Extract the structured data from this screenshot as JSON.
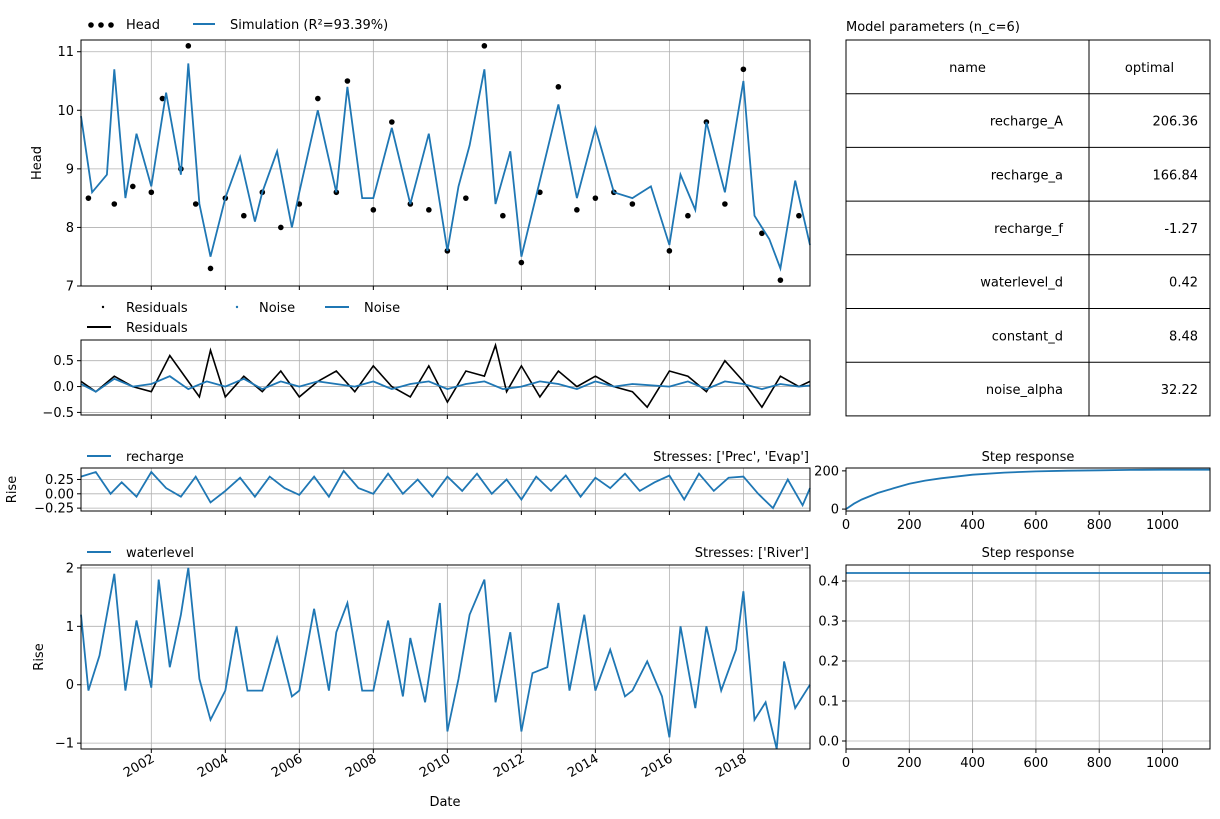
{
  "colors": {
    "head": "#000000",
    "simulation": "#1f77b4",
    "residuals": "#000000",
    "noise": "#1f77b4",
    "grid": "#b0b0b0"
  },
  "chart_data": [
    {
      "type": "line",
      "id": "head",
      "ylabel": "Head",
      "xlim": [
        2000.1,
        2019.8
      ],
      "ylim": [
        7,
        11.2
      ],
      "yticks": [
        7,
        8,
        9,
        10,
        11
      ],
      "grid": true,
      "legend": {
        "placement": "top-left",
        "entries": [
          "Head",
          "Simulation (R²=93.39%)"
        ]
      },
      "series": [
        {
          "name": "Head",
          "style": "points",
          "x": [
            2000.3,
            2001.0,
            2001.5,
            2002.0,
            2002.3,
            2002.8,
            2003.0,
            2003.2,
            2003.6,
            2004.0,
            2004.5,
            2005.0,
            2005.5,
            2006.0,
            2006.5,
            2007.0,
            2007.3,
            2008.0,
            2008.5,
            2009.0,
            2009.5,
            2010.0,
            2010.5,
            2011.0,
            2011.5,
            2012.0,
            2012.5,
            2013.0,
            2013.5,
            2014.0,
            2014.5,
            2015.0,
            2016.0,
            2016.5,
            2017.0,
            2017.5,
            2018.0,
            2018.5,
            2019.0,
            2019.5
          ],
          "values": [
            8.5,
            8.4,
            8.7,
            8.6,
            10.2,
            9.0,
            11.1,
            8.4,
            7.3,
            8.5,
            8.2,
            8.6,
            8.0,
            8.4,
            10.2,
            8.6,
            10.5,
            8.3,
            9.8,
            8.4,
            8.3,
            7.6,
            8.5,
            11.1,
            8.2,
            7.4,
            8.6,
            10.4,
            8.3,
            8.5,
            8.6,
            8.4,
            7.6,
            8.2,
            9.8,
            8.4,
            10.7,
            7.9,
            7.1,
            8.2
          ]
        },
        {
          "name": "Simulation (R²=93.39%)",
          "style": "line",
          "x": [
            2000.1,
            2000.4,
            2000.8,
            2001.0,
            2001.3,
            2001.6,
            2002.0,
            2002.4,
            2002.8,
            2003.0,
            2003.3,
            2003.6,
            2004.0,
            2004.4,
            2004.8,
            2005.0,
            2005.4,
            2005.8,
            2006.0,
            2006.5,
            2007.0,
            2007.3,
            2007.7,
            2008.0,
            2008.5,
            2009.0,
            2009.5,
            2010.0,
            2010.3,
            2010.6,
            2011.0,
            2011.3,
            2011.7,
            2012.0,
            2012.5,
            2013.0,
            2013.5,
            2014.0,
            2014.5,
            2015.0,
            2015.5,
            2016.0,
            2016.3,
            2016.7,
            2017.0,
            2017.5,
            2018.0,
            2018.3,
            2018.7,
            2019.0,
            2019.4,
            2019.8
          ],
          "values": [
            9.9,
            8.6,
            8.9,
            10.7,
            8.5,
            9.6,
            8.7,
            10.3,
            8.9,
            10.8,
            8.4,
            7.5,
            8.5,
            9.2,
            8.1,
            8.6,
            9.3,
            8.0,
            8.6,
            10.0,
            8.6,
            10.4,
            8.5,
            8.5,
            9.7,
            8.4,
            9.6,
            7.6,
            8.7,
            9.4,
            10.7,
            8.4,
            9.3,
            7.5,
            8.8,
            10.1,
            8.5,
            9.7,
            8.6,
            8.5,
            8.7,
            7.7,
            8.9,
            8.3,
            9.8,
            8.6,
            10.5,
            8.2,
            7.8,
            7.3,
            8.8,
            7.7
          ]
        }
      ]
    },
    {
      "type": "line",
      "id": "residuals",
      "xlim": [
        2000.1,
        2019.8
      ],
      "ylim": [
        -0.55,
        0.9
      ],
      "yticks": [
        -0.5,
        0.0,
        0.5
      ],
      "yticklabels": [
        "−0.5",
        "0.0",
        "0.5"
      ],
      "grid": true,
      "legend": {
        "placement": "top-left",
        "entries": [
          "Residuals",
          "Noise",
          "Noise",
          "Residuals"
        ]
      },
      "series": [
        {
          "name": "Residuals",
          "style": "line",
          "x": [
            2000.1,
            2000.5,
            2001.0,
            2001.5,
            2002.0,
            2002.5,
            2003.0,
            2003.3,
            2003.6,
            2004.0,
            2004.5,
            2005.0,
            2005.5,
            2006.0,
            2006.5,
            2007.0,
            2007.5,
            2008.0,
            2008.5,
            2009.0,
            2009.5,
            2010.0,
            2010.5,
            2011.0,
            2011.3,
            2011.6,
            2012.0,
            2012.5,
            2013.0,
            2013.5,
            2014.0,
            2014.5,
            2015.0,
            2015.4,
            2016.0,
            2016.5,
            2017.0,
            2017.5,
            2018.0,
            2018.5,
            2019.0,
            2019.5,
            2019.8
          ],
          "values": [
            0.1,
            -0.1,
            0.2,
            0.0,
            -0.1,
            0.6,
            0.1,
            -0.2,
            0.7,
            -0.2,
            0.2,
            -0.1,
            0.3,
            -0.2,
            0.1,
            0.3,
            -0.1,
            0.4,
            0.0,
            -0.2,
            0.4,
            -0.3,
            0.3,
            0.2,
            0.8,
            -0.1,
            0.4,
            -0.2,
            0.3,
            0.0,
            0.2,
            0.0,
            -0.1,
            -0.4,
            0.3,
            0.2,
            -0.1,
            0.5,
            0.1,
            -0.4,
            0.2,
            0.0,
            0.1
          ]
        },
        {
          "name": "Noise",
          "style": "line",
          "x": [
            2000.1,
            2000.5,
            2001.0,
            2001.5,
            2002.0,
            2002.5,
            2003.0,
            2003.5,
            2004.0,
            2004.5,
            2005.0,
            2005.5,
            2006.0,
            2006.5,
            2007.0,
            2007.5,
            2008.0,
            2008.5,
            2009.0,
            2009.5,
            2010.0,
            2010.5,
            2011.0,
            2011.5,
            2012.0,
            2012.5,
            2013.0,
            2013.5,
            2014.0,
            2014.5,
            2015.0,
            2016.0,
            2016.5,
            2017.0,
            2017.5,
            2018.0,
            2018.5,
            2019.0,
            2019.5,
            2019.8
          ],
          "values": [
            0.05,
            -0.1,
            0.15,
            0.0,
            0.05,
            0.2,
            -0.05,
            0.1,
            0.0,
            0.15,
            -0.05,
            0.1,
            0.0,
            0.1,
            0.05,
            0.0,
            0.1,
            -0.05,
            0.05,
            0.1,
            -0.05,
            0.05,
            0.1,
            -0.05,
            0.0,
            0.1,
            0.05,
            -0.05,
            0.1,
            0.0,
            0.05,
            0.0,
            0.1,
            -0.05,
            0.1,
            0.05,
            -0.05,
            0.05,
            0.0,
            0.02
          ]
        }
      ]
    },
    {
      "type": "table",
      "id": "parameters",
      "title": "Model parameters (n_c=6)",
      "columns": [
        "name",
        "optimal"
      ],
      "rows": [
        [
          "recharge_A",
          "206.36"
        ],
        [
          "recharge_a",
          "166.84"
        ],
        [
          "recharge_f",
          "-1.27"
        ],
        [
          "waterlevel_d",
          "0.42"
        ],
        [
          "constant_d",
          "8.48"
        ],
        [
          "noise_alpha",
          "32.22"
        ]
      ]
    },
    {
      "type": "line",
      "id": "recharge",
      "ylabel": "Rise",
      "annotation": "Stresses: ['Prec', 'Evap']",
      "xlim": [
        2000.1,
        2019.8
      ],
      "ylim": [
        -0.3,
        0.45
      ],
      "yticks": [
        -0.25,
        0.0,
        0.25
      ],
      "yticklabels": [
        "−0.25",
        "0.00",
        "0.25"
      ],
      "grid": true,
      "legend": {
        "placement": "top-left",
        "entries": [
          "recharge"
        ]
      },
      "series": [
        {
          "name": "recharge",
          "style": "line",
          "x": [
            2000.1,
            2000.5,
            2000.9,
            2001.2,
            2001.6,
            2002.0,
            2002.4,
            2002.8,
            2003.2,
            2003.6,
            2004.0,
            2004.4,
            2004.8,
            2005.2,
            2005.6,
            2006.0,
            2006.4,
            2006.8,
            2007.2,
            2007.6,
            2008.0,
            2008.4,
            2008.8,
            2009.2,
            2009.6,
            2010.0,
            2010.4,
            2010.8,
            2011.2,
            2011.6,
            2012.0,
            2012.4,
            2012.8,
            2013.2,
            2013.6,
            2014.0,
            2014.4,
            2014.8,
            2015.2,
            2015.6,
            2016.0,
            2016.4,
            2016.8,
            2017.2,
            2017.6,
            2018.0,
            2018.4,
            2018.8,
            2019.2,
            2019.6,
            2019.8
          ],
          "values": [
            0.3,
            0.38,
            0.0,
            0.2,
            -0.05,
            0.38,
            0.1,
            -0.05,
            0.3,
            -0.15,
            0.05,
            0.28,
            -0.05,
            0.3,
            0.1,
            -0.02,
            0.3,
            -0.05,
            0.4,
            0.1,
            0.0,
            0.35,
            0.0,
            0.25,
            -0.05,
            0.3,
            0.05,
            0.35,
            0.0,
            0.25,
            -0.1,
            0.3,
            0.05,
            0.32,
            -0.05,
            0.28,
            0.1,
            0.35,
            0.05,
            0.2,
            0.32,
            -0.1,
            0.35,
            0.05,
            0.28,
            0.3,
            0.0,
            -0.25,
            0.25,
            -0.2,
            0.1
          ]
        }
      ]
    },
    {
      "type": "line",
      "id": "recharge_step",
      "title": "Step response",
      "xlim": [
        0,
        1150
      ],
      "ylim": [
        -10,
        215
      ],
      "xticks": [
        0,
        200,
        400,
        600,
        800,
        1000
      ],
      "yticks": [
        0,
        200
      ],
      "grid": false,
      "series": [
        {
          "name": "",
          "style": "line",
          "x": [
            0,
            25,
            50,
            100,
            150,
            200,
            250,
            300,
            400,
            500,
            600,
            700,
            800,
            900,
            1000,
            1150
          ],
          "values": [
            0,
            28,
            50,
            84,
            109,
            133,
            149,
            161,
            180,
            191,
            197,
            201,
            203,
            205,
            206,
            206
          ]
        }
      ]
    },
    {
      "type": "line",
      "id": "waterlevel",
      "ylabel": "Rise",
      "xlabel": "Date",
      "annotation": "Stresses: ['River']",
      "xlim": [
        2000.1,
        2019.8
      ],
      "ylim": [
        -1.1,
        2.05
      ],
      "yticks": [
        -1,
        0,
        1,
        2
      ],
      "yticklabels": [
        "−1",
        "0",
        "1",
        "2"
      ],
      "xticks": [
        2002,
        2004,
        2006,
        2008,
        2010,
        2012,
        2014,
        2016,
        2018
      ],
      "grid": true,
      "legend": {
        "placement": "top-left",
        "entries": [
          "waterlevel"
        ]
      },
      "series": [
        {
          "name": "waterlevel",
          "style": "line",
          "x": [
            2000.1,
            2000.3,
            2000.6,
            2001.0,
            2001.3,
            2001.6,
            2002.0,
            2002.2,
            2002.5,
            2002.8,
            2003.0,
            2003.3,
            2003.6,
            2004.0,
            2004.3,
            2004.6,
            2005.0,
            2005.4,
            2005.8,
            2006.0,
            2006.4,
            2006.8,
            2007.0,
            2007.3,
            2007.7,
            2008.0,
            2008.4,
            2008.8,
            2009.0,
            2009.4,
            2009.8,
            2010.0,
            2010.3,
            2010.6,
            2011.0,
            2011.3,
            2011.7,
            2012.0,
            2012.3,
            2012.7,
            2013.0,
            2013.3,
            2013.7,
            2014.0,
            2014.4,
            2014.8,
            2015.0,
            2015.4,
            2015.8,
            2016.0,
            2016.3,
            2016.7,
            2017.0,
            2017.4,
            2017.8,
            2018.0,
            2018.3,
            2018.6,
            2018.9,
            2019.1,
            2019.4,
            2019.8
          ],
          "values": [
            1.2,
            -0.1,
            0.5,
            1.9,
            -0.1,
            1.1,
            -0.05,
            1.8,
            0.3,
            1.2,
            2.0,
            0.1,
            -0.6,
            -0.1,
            1.0,
            -0.1,
            -0.1,
            0.8,
            -0.2,
            -0.1,
            1.3,
            -0.1,
            0.9,
            1.4,
            -0.1,
            -0.1,
            1.1,
            -0.2,
            0.8,
            -0.3,
            1.4,
            -0.8,
            0.1,
            1.2,
            1.8,
            -0.3,
            0.9,
            -0.8,
            0.2,
            0.3,
            1.4,
            -0.1,
            1.2,
            -0.1,
            0.6,
            -0.2,
            -0.1,
            0.4,
            -0.2,
            -0.9,
            1.0,
            -0.4,
            1.0,
            -0.1,
            0.6,
            1.6,
            -0.6,
            -0.3,
            -1.1,
            0.4,
            -0.4,
            0.0
          ]
        }
      ]
    },
    {
      "type": "line",
      "id": "waterlevel_step",
      "title": "Step response",
      "xlim": [
        0,
        1150
      ],
      "ylim": [
        -0.02,
        0.44
      ],
      "xticks": [
        0,
        200,
        400,
        600,
        800,
        1000
      ],
      "yticks": [
        0.0,
        0.1,
        0.2,
        0.3,
        0.4
      ],
      "yticklabels": [
        "0.0",
        "0.1",
        "0.2",
        "0.3",
        "0.4"
      ],
      "grid": true,
      "series": [
        {
          "name": "",
          "style": "line",
          "x": [
            0,
            1150
          ],
          "values": [
            0.42,
            0.42
          ]
        }
      ]
    }
  ]
}
